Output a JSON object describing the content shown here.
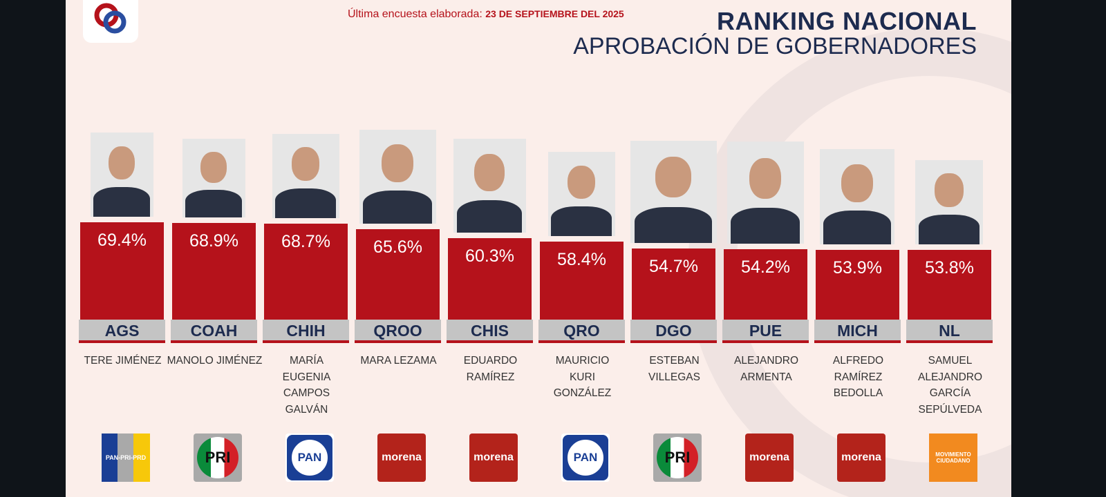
{
  "header": {
    "survey_label": "Última encuesta elaborada:",
    "survey_date": "23 DE SEPTIEMBRE DEL 2025",
    "title": "RANKING NACIONAL",
    "subtitle": "APROBACIÓN DE GOBERNADORES",
    "logo_text": "CE"
  },
  "colors": {
    "bar": "#b5121b",
    "title": "#1d2b4f",
    "background": "#fbeeea",
    "label_strip": "#c4c4c4"
  },
  "chart_data": {
    "type": "bar",
    "title": "RANKING NACIONAL",
    "subtitle": "APROBACIÓN DE GOBERNADORES",
    "categories": [
      "AGS",
      "COAH",
      "CHIH",
      "QROO",
      "CHIS",
      "QRO",
      "DGO",
      "PUE",
      "MICH",
      "NL"
    ],
    "values": [
      69.4,
      68.9,
      68.7,
      65.6,
      60.3,
      58.4,
      54.7,
      54.2,
      53.9,
      53.8
    ],
    "value_labels": [
      "69.4%",
      "68.9%",
      "68.7%",
      "65.6%",
      "60.3%",
      "58.4%",
      "54.7%",
      "54.2%",
      "53.9%",
      "53.8%"
    ],
    "governors": [
      "TERE JIMÉNEZ",
      "MANOLO JIMÉNEZ",
      "MARÍA EUGENIA CAMPOS GALVÁN",
      "MARA LEZAMA",
      "EDUARDO RAMÍREZ",
      "MAURICIO KURI GONZÁLEZ",
      "ESTEBAN VILLEGAS",
      "ALEJANDRO ARMENTA",
      "ALFREDO RAMÍREZ BEDOLLA",
      "SAMUEL ALEJANDRO GARCÍA SEPÚLVEDA"
    ],
    "parties": [
      "PAN-PRI-PRD",
      "PRI",
      "PAN",
      "morena",
      "morena",
      "PAN",
      "PRI",
      "morena",
      "morena",
      "MOVIMIENTO CIUDADANO"
    ],
    "grid": false,
    "legend": "none"
  }
}
